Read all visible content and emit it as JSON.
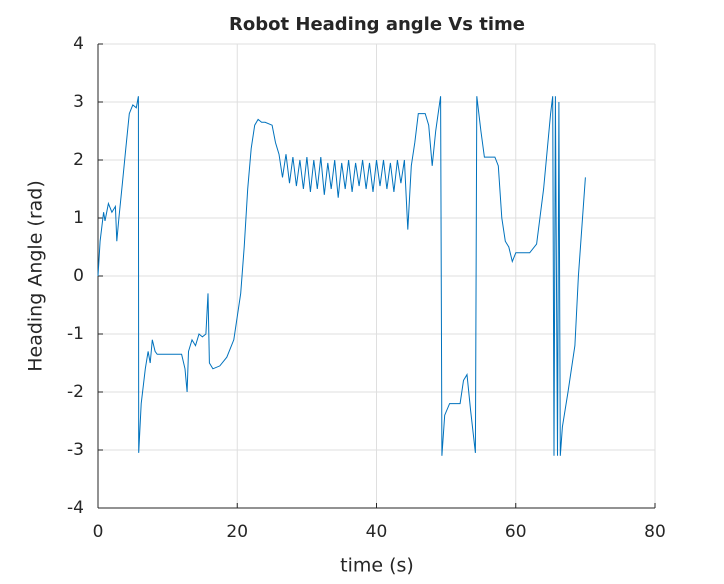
{
  "chart_data": {
    "type": "line",
    "title": "Robot Heading angle Vs time",
    "xlabel": "time (s)",
    "ylabel": "Heading Angle (rad)",
    "xlim": [
      0,
      80
    ],
    "ylim": [
      -4,
      4
    ],
    "xticks": [
      0,
      20,
      40,
      60,
      80
    ],
    "yticks": [
      -4,
      -3,
      -2,
      -1,
      0,
      1,
      2,
      3,
      4
    ],
    "grid": true,
    "series": [
      {
        "color": "#0072bd",
        "x": [
          0,
          0.3,
          0.8,
          1.0,
          1.5,
          2.0,
          2.5,
          2.7,
          3.0,
          3.5,
          4.0,
          4.5,
          5.0,
          5.5,
          5.8,
          5.85,
          6.2,
          6.8,
          7.2,
          7.5,
          7.8,
          8.2,
          8.5,
          10,
          12,
          12.5,
          12.8,
          13,
          13.5,
          14,
          14.5,
          15,
          15.5,
          15.8,
          16,
          16.5,
          17.5,
          18.5,
          19.5,
          20.5,
          21,
          21.5,
          22,
          22.5,
          23,
          23.5,
          24,
          25,
          25.5,
          26,
          26.5,
          27,
          27.5,
          28,
          28.5,
          29,
          29.5,
          30,
          30.5,
          31,
          31.5,
          32,
          32.5,
          33,
          33.5,
          34,
          34.5,
          35,
          35.5,
          36,
          36.5,
          37,
          37.5,
          38,
          38.5,
          39,
          39.5,
          40,
          40.5,
          41,
          41.5,
          42,
          42.5,
          43,
          43.5,
          44,
          44.5,
          45,
          45.5,
          46,
          47,
          47.5,
          48,
          48.5,
          49.2,
          49.4,
          49.8,
          50.5,
          52,
          52.5,
          53,
          53.5,
          54.2,
          54.4,
          55,
          55.5,
          57,
          57.5,
          58,
          58.5,
          59,
          59.5,
          60,
          62,
          63,
          64,
          65,
          65.3,
          65.5,
          65.7,
          66,
          66.2,
          66.4,
          66.7,
          67.5,
          68.5,
          69,
          70
        ],
        "values": [
          0,
          0.6,
          1.1,
          0.95,
          1.25,
          1.1,
          1.2,
          0.6,
          1.0,
          1.6,
          2.2,
          2.8,
          2.95,
          2.9,
          3.1,
          -3.05,
          -2.2,
          -1.6,
          -1.3,
          -1.5,
          -1.1,
          -1.3,
          -1.35,
          -1.35,
          -1.35,
          -1.6,
          -2.0,
          -1.3,
          -1.1,
          -1.2,
          -1.0,
          -1.05,
          -1.0,
          -0.3,
          -1.5,
          -1.6,
          -1.55,
          -1.4,
          -1.1,
          -0.3,
          0.5,
          1.5,
          2.2,
          2.6,
          2.7,
          2.65,
          2.65,
          2.6,
          2.3,
          2.1,
          1.7,
          2.1,
          1.6,
          2.05,
          1.55,
          2.0,
          1.5,
          2.05,
          1.45,
          2.0,
          1.5,
          2.05,
          1.4,
          1.95,
          1.5,
          2.0,
          1.35,
          1.95,
          1.5,
          2.0,
          1.45,
          1.95,
          1.55,
          2.0,
          1.5,
          1.95,
          1.45,
          2.0,
          1.55,
          2.0,
          1.5,
          1.95,
          1.45,
          2.0,
          1.6,
          2.0,
          0.8,
          1.9,
          2.3,
          2.8,
          2.8,
          2.6,
          1.9,
          2.5,
          3.1,
          -3.1,
          -2.4,
          -2.2,
          -2.2,
          -1.8,
          -1.7,
          -2.3,
          -3.05,
          3.1,
          2.5,
          2.05,
          2.05,
          1.9,
          1.0,
          0.6,
          0.5,
          0.25,
          0.4,
          0.4,
          0.55,
          1.5,
          2.8,
          3.1,
          -3.1,
          3.1,
          -3.1,
          3.0,
          -3.1,
          -2.6,
          -2.0,
          -1.2,
          0.0,
          1.7
        ]
      }
    ]
  }
}
